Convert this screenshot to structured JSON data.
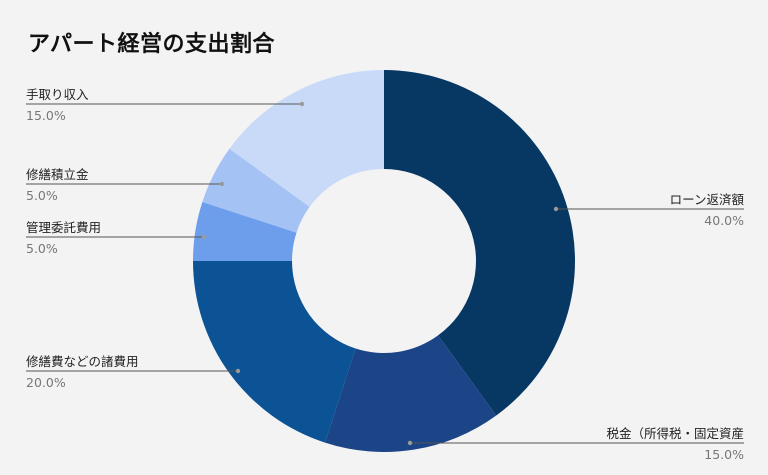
{
  "chart_data": {
    "type": "pie",
    "donut": true,
    "title": "アパート経営の支出割合",
    "slices": [
      {
        "label": "ローン返済額",
        "value": 40.0,
        "pct_text": "40.0%",
        "color": "#073763"
      },
      {
        "label": "税金（所得税・固定資産",
        "value": 15.0,
        "pct_text": "15.0%",
        "color": "#1c4587"
      },
      {
        "label": "修繕費などの諸費用",
        "value": 20.0,
        "pct_text": "20.0%",
        "color": "#0b5394"
      },
      {
        "label": "管理委託費用",
        "value": 5.0,
        "pct_text": "5.0%",
        "color": "#6d9eeb"
      },
      {
        "label": "修繕積立金",
        "value": 5.0,
        "pct_text": "5.0%",
        "color": "#a4c2f4"
      },
      {
        "label": "手取り収入",
        "value": 15.0,
        "pct_text": "15.0%",
        "color": "#c9daf8"
      }
    ]
  }
}
